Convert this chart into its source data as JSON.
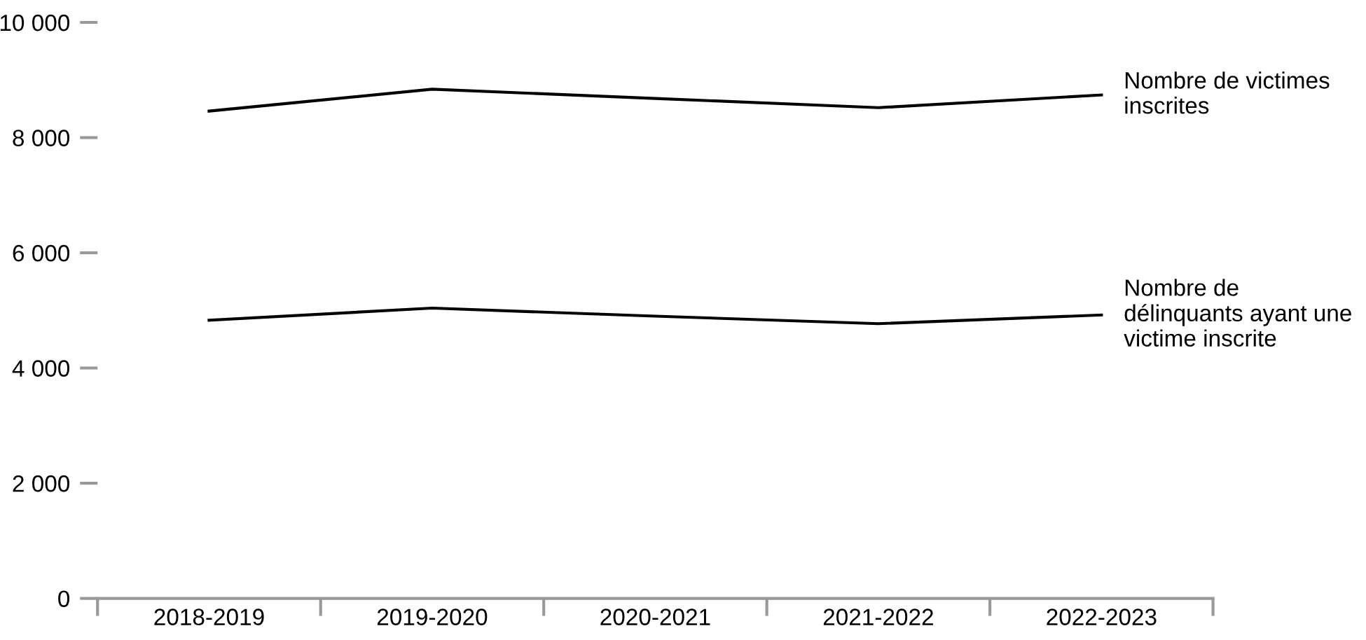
{
  "chart_data": {
    "type": "line",
    "categories": [
      "2018-2019",
      "2019-2020",
      "2020-2021",
      "2021-2022",
      "2022-2023"
    ],
    "series": [
      {
        "name": "Nombre de victimes inscrites",
        "color": "#000000",
        "values": [
          8460,
          8840,
          8680,
          8520,
          8740
        ]
      },
      {
        "name": "Nombre de délinquants ayant une victime inscrite",
        "color": "#000000",
        "values": [
          4830,
          5040,
          4900,
          4770,
          4920
        ]
      }
    ],
    "ylim": [
      0,
      10000
    ],
    "yticks": [
      0,
      {
        "value": 2000,
        "label": "2 000"
      },
      {
        "value": 4000,
        "label": "4 000"
      },
      {
        "value": 6000,
        "label": "6 000"
      },
      {
        "value": 8000,
        "label": "8 000"
      },
      {
        "value": 10000,
        "label": "10 000"
      }
    ],
    "grid": false,
    "marker": "none",
    "line_style": "solid"
  }
}
